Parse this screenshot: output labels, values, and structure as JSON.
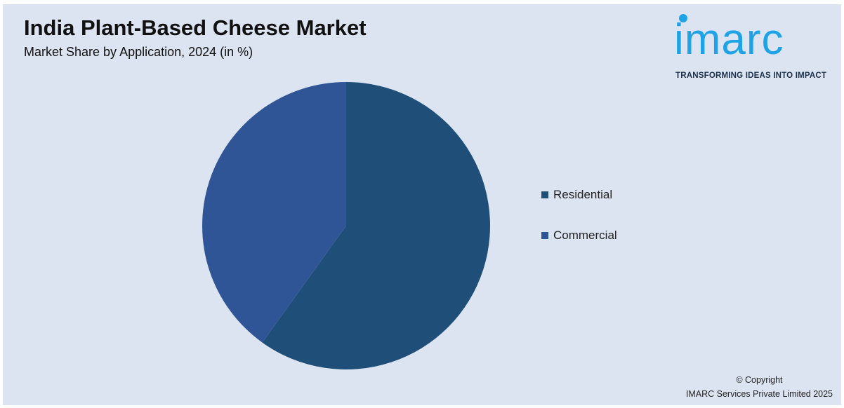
{
  "header": {
    "title": "India Plant-Based Cheese Market",
    "subtitle": "Market Share by Application, 2024 (in %)"
  },
  "logo": {
    "wordmark": "imarc",
    "tagline": "TRANSFORMING IDEAS INTO IMPACT",
    "color": "#1ea4e6"
  },
  "chart_data": {
    "type": "pie",
    "title": "India Plant-Based Cheese Market",
    "subtitle": "Market Share by Application, 2024 (in %)",
    "categories": [
      "Residential",
      "Commercial"
    ],
    "values": [
      59.9,
      40.1
    ],
    "colors": [
      "#1f4e79",
      "#2f5597"
    ],
    "legend_position": "right"
  },
  "footer": {
    "copyright_line1": "© Copyright",
    "copyright_line2": "IMARC Services Private Limited 2025"
  }
}
